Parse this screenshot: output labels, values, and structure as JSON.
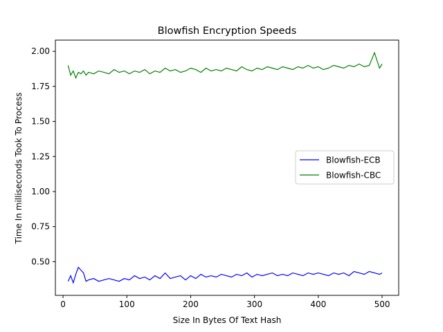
{
  "chart_data": {
    "type": "line",
    "title": "Blowfish Encryption Speeds",
    "xlabel": "Size In Bytes Of Text Hash",
    "ylabel": "Time In milliseconds Took To Process",
    "xlim": [
      -12,
      526
    ],
    "ylim": [
      0.26,
      2.08
    ],
    "xticks": [
      0,
      100,
      200,
      300,
      400,
      500
    ],
    "xtick_labels": [
      "0",
      "100",
      "200",
      "300",
      "400",
      "500"
    ],
    "yticks": [
      0.5,
      0.75,
      1.0,
      1.25,
      1.5,
      1.75,
      2.0
    ],
    "ytick_labels": [
      "0.50",
      "0.75",
      "1.00",
      "1.25",
      "1.50",
      "1.75",
      "2.00"
    ],
    "grid": false,
    "legend_position": "center-right",
    "series": [
      {
        "name": "Blowfish-ECB",
        "color": "#0000ff",
        "x": [
          8,
          12,
          16,
          20,
          24,
          28,
          32,
          36,
          40,
          48,
          56,
          64,
          72,
          80,
          88,
          96,
          104,
          112,
          120,
          128,
          136,
          144,
          152,
          160,
          168,
          176,
          184,
          192,
          200,
          208,
          216,
          224,
          232,
          240,
          248,
          256,
          264,
          272,
          280,
          288,
          296,
          304,
          312,
          320,
          328,
          336,
          344,
          352,
          360,
          368,
          376,
          384,
          392,
          400,
          408,
          416,
          424,
          432,
          440,
          448,
          456,
          464,
          472,
          480,
          488,
          496,
          500
        ],
        "values": [
          0.36,
          0.4,
          0.35,
          0.41,
          0.46,
          0.44,
          0.42,
          0.36,
          0.37,
          0.38,
          0.36,
          0.37,
          0.38,
          0.37,
          0.36,
          0.38,
          0.37,
          0.4,
          0.38,
          0.39,
          0.37,
          0.4,
          0.38,
          0.42,
          0.38,
          0.39,
          0.4,
          0.37,
          0.4,
          0.38,
          0.41,
          0.39,
          0.4,
          0.39,
          0.41,
          0.4,
          0.39,
          0.41,
          0.4,
          0.42,
          0.39,
          0.41,
          0.4,
          0.41,
          0.42,
          0.4,
          0.41,
          0.4,
          0.42,
          0.41,
          0.4,
          0.42,
          0.41,
          0.42,
          0.41,
          0.4,
          0.42,
          0.41,
          0.42,
          0.4,
          0.43,
          0.42,
          0.41,
          0.43,
          0.42,
          0.41,
          0.42
        ]
      },
      {
        "name": "Blowfish-CBC",
        "color": "#008000",
        "x": [
          8,
          12,
          16,
          20,
          24,
          28,
          32,
          36,
          40,
          48,
          56,
          64,
          72,
          80,
          88,
          96,
          104,
          112,
          120,
          128,
          136,
          144,
          152,
          160,
          168,
          176,
          184,
          192,
          200,
          208,
          216,
          224,
          232,
          240,
          248,
          256,
          264,
          272,
          280,
          288,
          296,
          304,
          312,
          320,
          328,
          336,
          344,
          352,
          360,
          368,
          376,
          384,
          392,
          400,
          408,
          416,
          424,
          432,
          440,
          448,
          456,
          464,
          472,
          480,
          488,
          496,
          500
        ],
        "values": [
          1.9,
          1.83,
          1.86,
          1.81,
          1.85,
          1.84,
          1.86,
          1.83,
          1.85,
          1.84,
          1.86,
          1.85,
          1.84,
          1.87,
          1.85,
          1.86,
          1.84,
          1.86,
          1.85,
          1.87,
          1.84,
          1.86,
          1.85,
          1.88,
          1.86,
          1.87,
          1.85,
          1.86,
          1.88,
          1.87,
          1.85,
          1.88,
          1.86,
          1.87,
          1.86,
          1.88,
          1.87,
          1.86,
          1.89,
          1.87,
          1.86,
          1.88,
          1.87,
          1.89,
          1.88,
          1.87,
          1.89,
          1.88,
          1.87,
          1.89,
          1.88,
          1.9,
          1.88,
          1.89,
          1.87,
          1.88,
          1.9,
          1.89,
          1.88,
          1.9,
          1.89,
          1.91,
          1.89,
          1.9,
          1.99,
          1.88,
          1.91
        ]
      }
    ]
  }
}
